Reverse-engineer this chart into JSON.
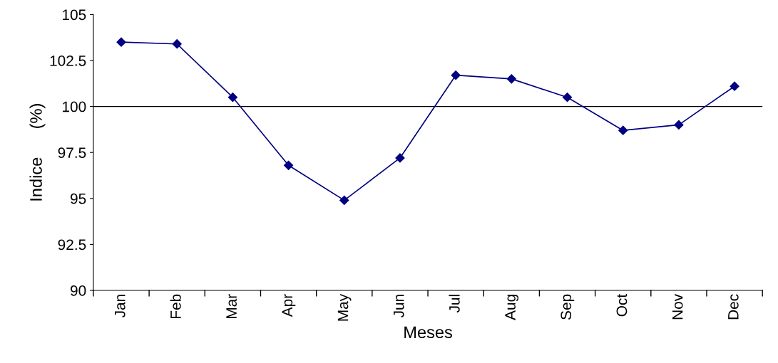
{
  "chart_data": {
    "type": "line",
    "xlabel": "Meses",
    "ylabel": "Indice      (%)",
    "categories": [
      "Jan",
      "Feb",
      "Mar",
      "Apr",
      "May",
      "Jun",
      "Jul",
      "Aug",
      "Sep",
      "Oct",
      "Nov",
      "Dec"
    ],
    "series": [
      {
        "color": "#000080",
        "values": [
          103.5,
          103.4,
          100.5,
          96.8,
          94.9,
          97.2,
          101.7,
          101.5,
          100.5,
          98.7,
          99.0,
          101.1
        ]
      }
    ],
    "ylim": [
      90,
      105
    ],
    "yticks": [
      90,
      92.5,
      95,
      97.5,
      100,
      102.5,
      105
    ],
    "ref_lines": [
      {
        "axis": "y",
        "value": 100,
        "color": "#000000"
      }
    ],
    "marker": "diamond",
    "line_style": "solid",
    "grid": false,
    "legend": false
  }
}
